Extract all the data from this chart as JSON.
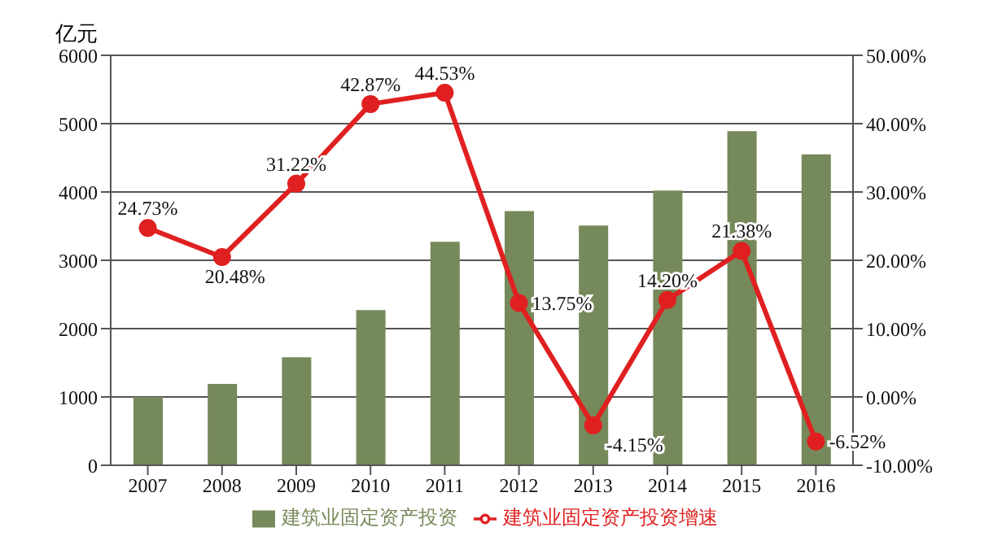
{
  "chart_data": {
    "type": "bar",
    "ylabel": "亿元",
    "categories": [
      "2007",
      "2008",
      "2009",
      "2010",
      "2011",
      "2012",
      "2013",
      "2014",
      "2015",
      "2016"
    ],
    "series": [
      {
        "name": "建筑业固定资产投资",
        "color": "#76895a",
        "values": [
          1000,
          1190,
          1580,
          2270,
          3270,
          3720,
          3510,
          4020,
          4890,
          4550
        ]
      },
      {
        "name": "建筑业固定资产投资增速",
        "type": "line",
        "axis": "y2",
        "color": "#e02020",
        "marker": "circle",
        "values": [
          24.73,
          20.48,
          31.22,
          42.87,
          44.53,
          13.75,
          -4.15,
          14.2,
          21.38,
          -6.52
        ],
        "value_labels": [
          "24.73%",
          "20.48%",
          "31.22%",
          "42.87%",
          "44.53%",
          "13.75%",
          "-4.15%",
          "14.20%",
          "21.38%",
          "-6.52%"
        ]
      }
    ],
    "ylim": [
      0,
      6000
    ],
    "yticks": [
      0,
      1000,
      2000,
      3000,
      4000,
      5000,
      6000
    ],
    "y2lim": [
      -10,
      50
    ],
    "y2ticks": [
      {
        "value": -10,
        "label": "-10.00%"
      },
      {
        "value": 0,
        "label": "0.00%"
      },
      {
        "value": 10,
        "label": "10.00%"
      },
      {
        "value": 20,
        "label": "20.00%"
      },
      {
        "value": 30,
        "label": "30.00%"
      },
      {
        "value": 40,
        "label": "40.00%"
      },
      {
        "value": 50,
        "label": "50.00%"
      }
    ],
    "grid": "y",
    "legend": "bottom"
  }
}
